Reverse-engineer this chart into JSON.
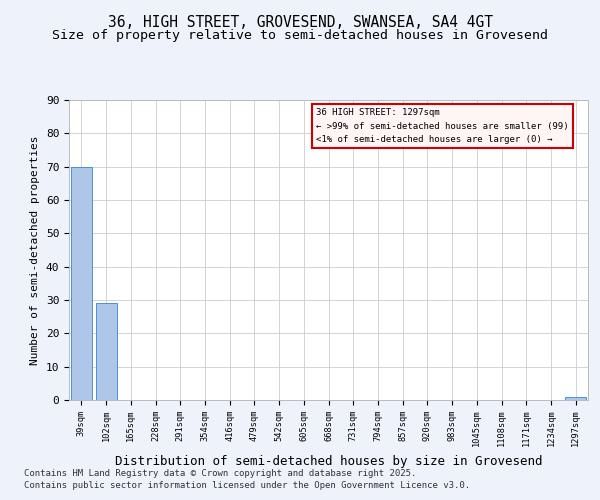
{
  "title": "36, HIGH STREET, GROVESEND, SWANSEA, SA4 4GT",
  "subtitle": "Size of property relative to semi-detached houses in Grovesend",
  "xlabel": "Distribution of semi-detached houses by size in Grovesend",
  "ylabel": "Number of semi-detached properties",
  "categories": [
    "39sqm",
    "102sqm",
    "165sqm",
    "228sqm",
    "291sqm",
    "354sqm",
    "416sqm",
    "479sqm",
    "542sqm",
    "605sqm",
    "668sqm",
    "731sqm",
    "794sqm",
    "857sqm",
    "920sqm",
    "983sqm",
    "1045sqm",
    "1108sqm",
    "1171sqm",
    "1234sqm",
    "1297sqm"
  ],
  "values": [
    70,
    29,
    0,
    0,
    0,
    0,
    0,
    0,
    0,
    0,
    0,
    0,
    0,
    0,
    0,
    0,
    0,
    0,
    0,
    0,
    1
  ],
  "bar_color": "#aec6e8",
  "bar_edgecolor": "#4a90d9",
  "box_text_line1": "36 HIGH STREET: 1297sqm",
  "box_text_line2": "← >99% of semi-detached houses are smaller (99)",
  "box_text_line3": "<1% of semi-detached houses are larger (0) →",
  "box_facecolor": "#fff5f5",
  "box_edgecolor": "#cc0000",
  "footnote1": "Contains HM Land Registry data © Crown copyright and database right 2025.",
  "footnote2": "Contains public sector information licensed under the Open Government Licence v3.0.",
  "ylim": [
    0,
    90
  ],
  "yticks": [
    0,
    10,
    20,
    30,
    40,
    50,
    60,
    70,
    80,
    90
  ],
  "background_color": "#eef2fb",
  "plot_background": "#ffffff",
  "grid_color": "#cccccc",
  "title_fontsize": 10.5,
  "subtitle_fontsize": 9.5
}
